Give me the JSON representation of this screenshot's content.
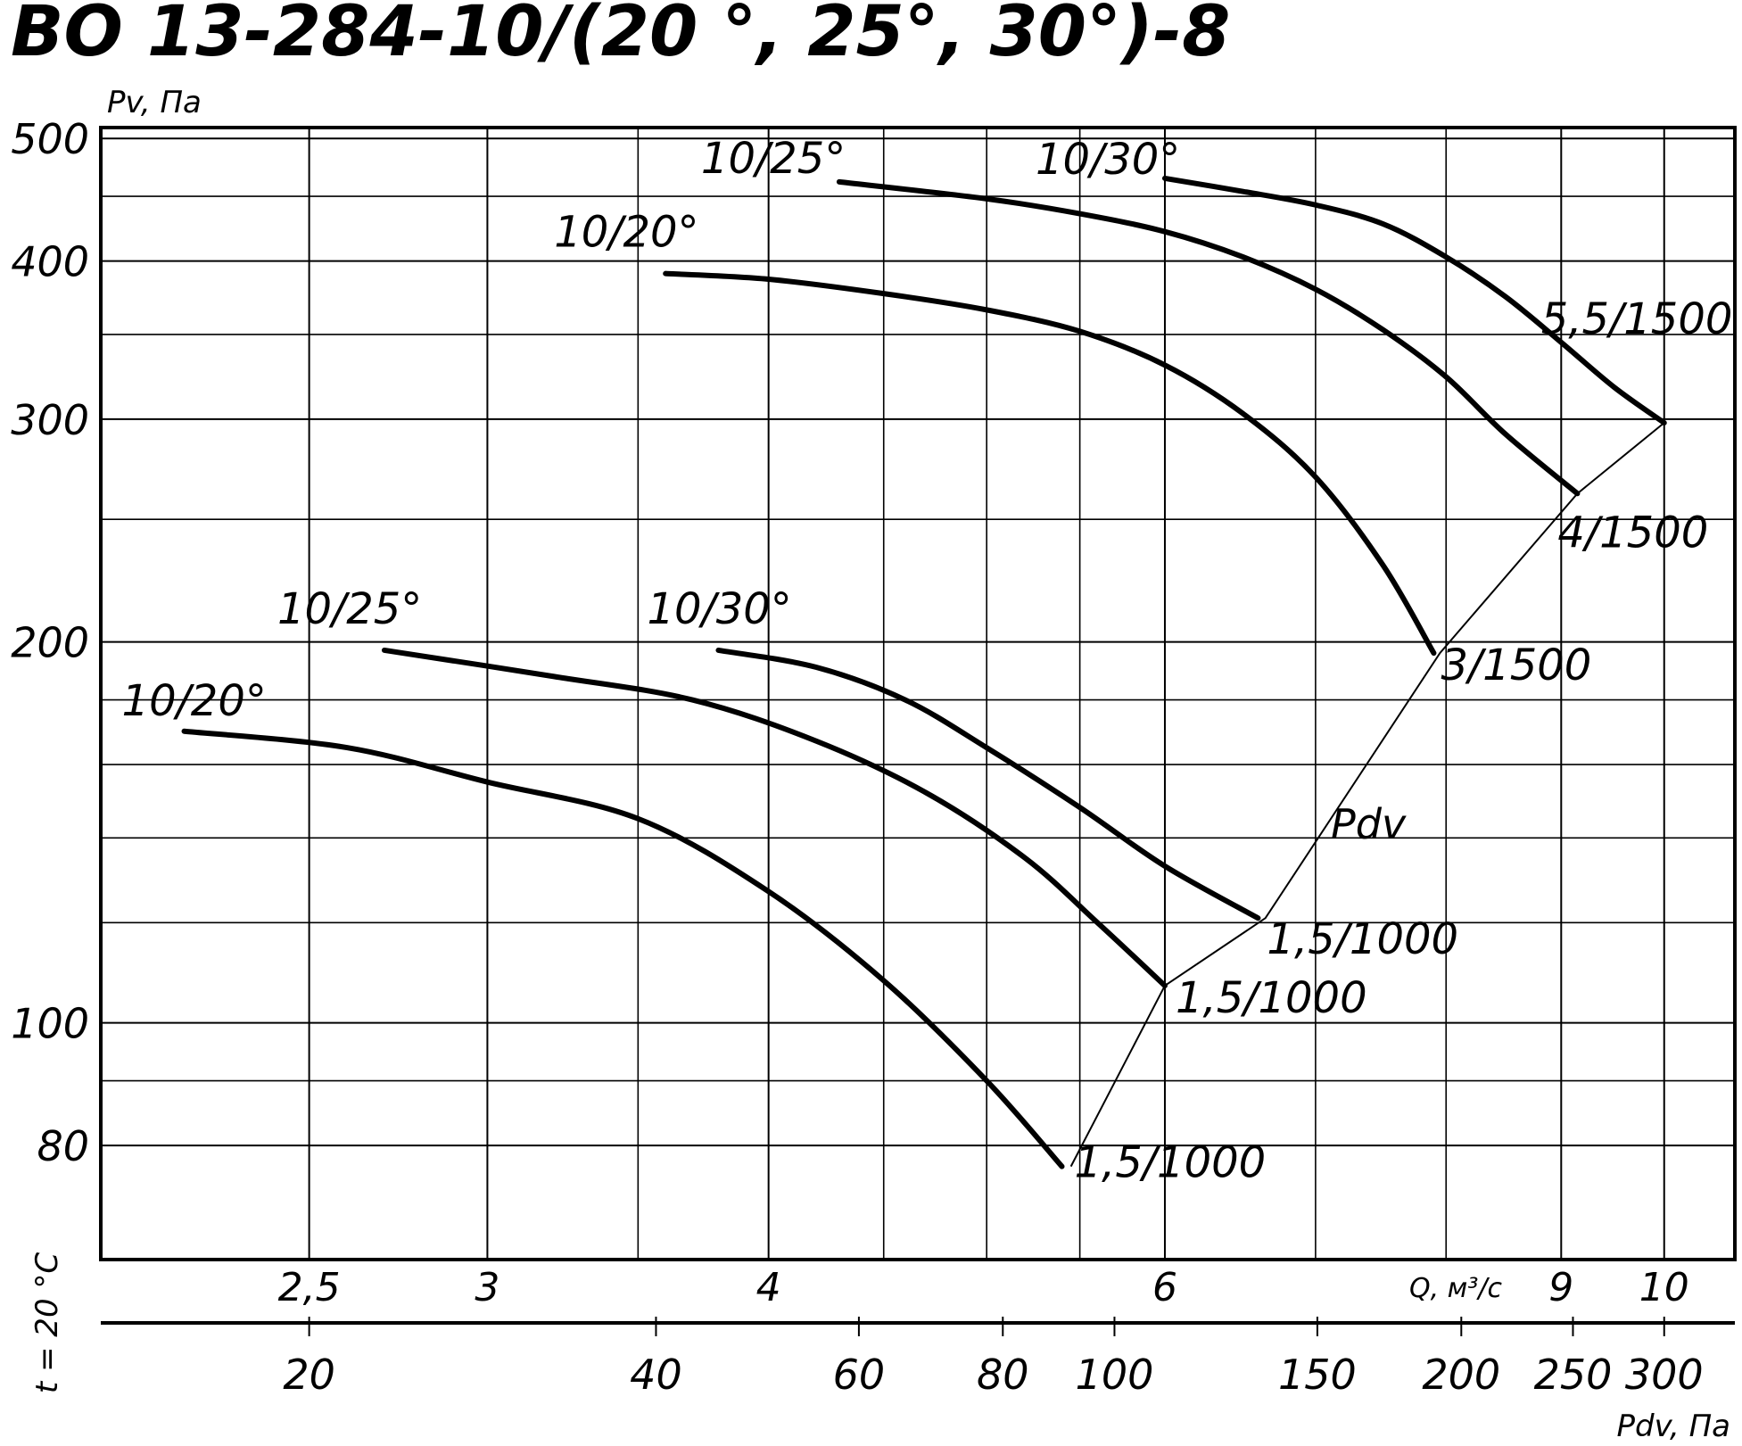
{
  "chart_data": {
    "type": "line",
    "title": "ВО 13-284-10/(20 °, 25°, 30°)-8",
    "ylabel": "Pv, Па",
    "xlabel": "Q, м³/с",
    "x2label": "Pdv, Па",
    "side_label": "t = 20 °C",
    "ylim": [
      65,
      510
    ],
    "xlim": [
      2.02,
      10.75
    ],
    "y_scale": "log",
    "x_scale": "log",
    "grid": true,
    "y_ticks": [
      {
        "value": 500,
        "label": "500"
      },
      {
        "value": 400,
        "label": "400"
      },
      {
        "value": 300,
        "label": "300"
      },
      {
        "value": 200,
        "label": "200"
      },
      {
        "value": 100,
        "label": "100"
      },
      {
        "value": 80,
        "label": "80"
      }
    ],
    "y_minor_gridlines": [
      450,
      350,
      250,
      180,
      160,
      140,
      120,
      90
    ],
    "x_ticks": [
      {
        "value": 2.5,
        "label": "2,5"
      },
      {
        "value": 3,
        "label": "3"
      },
      {
        "value": 4,
        "label": "4"
      },
      {
        "value": 6,
        "label": "6"
      },
      {
        "value": 9,
        "label": "9"
      },
      {
        "value": 10,
        "label": "10"
      }
    ],
    "x_minor_gridlines": [
      3.5,
      4.5,
      5,
      5.5,
      7,
      8
    ],
    "pdv_ticks": [
      {
        "value": 20,
        "label": "20"
      },
      {
        "value": 40,
        "label": "40"
      },
      {
        "value": 60,
        "label": "60"
      },
      {
        "value": 80,
        "label": "80"
      },
      {
        "value": 100,
        "label": "100"
      },
      {
        "value": 150,
        "label": "150"
      },
      {
        "value": 200,
        "label": "200"
      },
      {
        "value": 250,
        "label": "250"
      },
      {
        "value": 300,
        "label": "300"
      }
    ],
    "pdv_scale": {
      "q": [
        2.5,
        10
      ],
      "pdv": [
        20,
        300
      ]
    },
    "series": [
      {
        "name": "10/20°",
        "end_label": "1,5/1000",
        "x": [
          2.2,
          2.6,
          3.0,
          3.5,
          4.0,
          4.5,
          5.0,
          5.4
        ],
        "y": [
          170,
          165,
          155,
          145,
          127,
          108,
          90,
          77
        ]
      },
      {
        "name": "10/25°",
        "end_label": "1,5/1000",
        "x": [
          2.7,
          3.2,
          3.7,
          4.2,
          4.7,
          5.2,
          5.6,
          6.0
        ],
        "y": [
          197,
          188,
          180,
          167,
          152,
          135,
          120,
          107
        ]
      },
      {
        "name": "10/30°",
        "end_label": "1,5/1000",
        "x": [
          3.8,
          4.2,
          4.6,
          5.0,
          5.5,
          6.0,
          6.6
        ],
        "y": [
          197,
          191,
          180,
          165,
          148,
          133,
          121
        ]
      },
      {
        "name": "10/20°",
        "end_label": "3/1500",
        "x": [
          3.6,
          4.0,
          4.5,
          5.0,
          5.5,
          6.0,
          6.5,
          7.0,
          7.5,
          7.9
        ],
        "y": [
          391,
          387,
          377,
          366,
          352,
          331,
          303,
          270,
          230,
          196
        ]
      },
      {
        "name": "10/25°",
        "end_label": "4/1500",
        "x": [
          4.3,
          5.0,
          5.5,
          6.0,
          6.5,
          7.0,
          7.5,
          8.0,
          8.5,
          9.15
        ],
        "y": [
          462,
          448,
          436,
          422,
          403,
          380,
          353,
          324,
          292,
          262
        ]
      },
      {
        "name": "10/30°",
        "end_label": "5,5/1500",
        "x": [
          6.0,
          6.5,
          7.0,
          7.5,
          8.0,
          8.5,
          9.0,
          9.5,
          10.0
        ],
        "y": [
          465,
          454,
          443,
          428,
          403,
          375,
          345,
          318,
          298
        ]
      }
    ],
    "pdv_line": {
      "label": "Pdv",
      "x": [
        5.45,
        6.0,
        6.65,
        7.95,
        9.15,
        10.0
      ],
      "y": [
        77,
        107,
        121,
        196,
        262,
        298
      ]
    }
  }
}
